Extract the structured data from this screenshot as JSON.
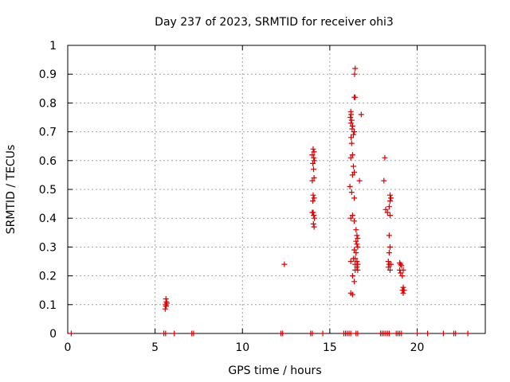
{
  "chart_data": {
    "type": "scatter",
    "title": "Day 237 of 2023, SRMTID for receiver ohi3",
    "xlabel": "GPS time / hours",
    "ylabel": "SRMTID / TECUs",
    "xlim": [
      0,
      23.9
    ],
    "ylim": [
      0,
      1
    ],
    "grid": true,
    "marker": "+",
    "marker_color": "#dd0000",
    "xticks": [
      0,
      5,
      10,
      15,
      20
    ],
    "yticks": [
      0,
      0.1,
      0.2,
      0.3,
      0.4,
      0.5,
      0.6,
      0.7,
      0.8,
      0.9,
      1
    ],
    "ytick_labels": [
      "0",
      "0.1",
      "0.2",
      "0.3",
      "0.4",
      "0.5",
      "0.6",
      "0.7",
      "0.8",
      "0.9",
      "1"
    ],
    "series": [
      {
        "name": "SRMTID",
        "points": [
          [
            0.2,
            0.0
          ],
          [
            5.5,
            0.0
          ],
          [
            5.6,
            0.0
          ],
          [
            6.1,
            0.0
          ],
          [
            7.1,
            0.0
          ],
          [
            7.2,
            0.0
          ],
          [
            12.2,
            0.0
          ],
          [
            12.3,
            0.0
          ],
          [
            13.9,
            0.0
          ],
          [
            14.0,
            0.0
          ],
          [
            14.6,
            0.0
          ],
          [
            15.8,
            0.0
          ],
          [
            15.9,
            0.0
          ],
          [
            16.0,
            0.0
          ],
          [
            16.1,
            0.0
          ],
          [
            16.2,
            0.0
          ],
          [
            16.5,
            0.0
          ],
          [
            16.6,
            0.0
          ],
          [
            17.9,
            0.0
          ],
          [
            18.0,
            0.0
          ],
          [
            18.1,
            0.0
          ],
          [
            18.2,
            0.0
          ],
          [
            18.3,
            0.0
          ],
          [
            18.4,
            0.0
          ],
          [
            18.8,
            0.0
          ],
          [
            18.9,
            0.0
          ],
          [
            19.0,
            0.0
          ],
          [
            19.1,
            0.0
          ],
          [
            20.0,
            0.0
          ],
          [
            20.6,
            0.0
          ],
          [
            21.5,
            0.0
          ],
          [
            22.1,
            0.0
          ],
          [
            22.2,
            0.0
          ],
          [
            22.9,
            0.0
          ],
          [
            5.62,
            0.12
          ],
          [
            5.65,
            0.11
          ],
          [
            5.6,
            0.1
          ],
          [
            5.63,
            0.095
          ],
          [
            5.58,
            0.085
          ],
          [
            5.68,
            0.105
          ],
          [
            12.4,
            0.24
          ],
          [
            14.05,
            0.64
          ],
          [
            14.1,
            0.63
          ],
          [
            14.0,
            0.62
          ],
          [
            14.08,
            0.61
          ],
          [
            14.12,
            0.6
          ],
          [
            14.03,
            0.59
          ],
          [
            14.07,
            0.57
          ],
          [
            14.0,
            0.53
          ],
          [
            14.1,
            0.54
          ],
          [
            14.05,
            0.48
          ],
          [
            14.1,
            0.47
          ],
          [
            14.03,
            0.46
          ],
          [
            14.0,
            0.42
          ],
          [
            14.08,
            0.41
          ],
          [
            14.05,
            0.42
          ],
          [
            14.12,
            0.4
          ],
          [
            14.06,
            0.38
          ],
          [
            14.1,
            0.37
          ],
          [
            16.2,
            0.77
          ],
          [
            16.22,
            0.76
          ],
          [
            16.18,
            0.75
          ],
          [
            16.25,
            0.74
          ],
          [
            16.2,
            0.73
          ],
          [
            16.3,
            0.72
          ],
          [
            16.28,
            0.71
          ],
          [
            16.4,
            0.7
          ],
          [
            16.35,
            0.69
          ],
          [
            16.22,
            0.68
          ],
          [
            16.25,
            0.66
          ],
          [
            16.3,
            0.62
          ],
          [
            16.2,
            0.61
          ],
          [
            16.35,
            0.58
          ],
          [
            16.3,
            0.55
          ],
          [
            16.4,
            0.56
          ],
          [
            16.15,
            0.51
          ],
          [
            16.25,
            0.49
          ],
          [
            16.4,
            0.47
          ],
          [
            16.3,
            0.41
          ],
          [
            16.2,
            0.4
          ],
          [
            16.4,
            0.39
          ],
          [
            16.45,
            0.92
          ],
          [
            16.42,
            0.9
          ],
          [
            16.45,
            0.82
          ],
          [
            16.4,
            0.82
          ],
          [
            16.8,
            0.76
          ],
          [
            16.7,
            0.53
          ],
          [
            16.5,
            0.36
          ],
          [
            16.55,
            0.34
          ],
          [
            16.6,
            0.33
          ],
          [
            16.5,
            0.32
          ],
          [
            16.55,
            0.31
          ],
          [
            16.4,
            0.29
          ],
          [
            16.6,
            0.3
          ],
          [
            16.5,
            0.28
          ],
          [
            16.45,
            0.26
          ],
          [
            16.35,
            0.26
          ],
          [
            16.55,
            0.25
          ],
          [
            16.6,
            0.24
          ],
          [
            16.45,
            0.24
          ],
          [
            16.55,
            0.23
          ],
          [
            16.6,
            0.22
          ],
          [
            16.45,
            0.22
          ],
          [
            16.2,
            0.25
          ],
          [
            16.3,
            0.2
          ],
          [
            16.4,
            0.18
          ],
          [
            16.2,
            0.14
          ],
          [
            16.3,
            0.135
          ],
          [
            18.15,
            0.61
          ],
          [
            18.1,
            0.53
          ],
          [
            18.45,
            0.48
          ],
          [
            18.5,
            0.47
          ],
          [
            18.45,
            0.46
          ],
          [
            18.4,
            0.44
          ],
          [
            18.2,
            0.43
          ],
          [
            18.3,
            0.42
          ],
          [
            18.45,
            0.41
          ],
          [
            18.4,
            0.34
          ],
          [
            18.45,
            0.3
          ],
          [
            18.4,
            0.28
          ],
          [
            18.35,
            0.25
          ],
          [
            18.4,
            0.24
          ],
          [
            18.5,
            0.24
          ],
          [
            18.35,
            0.23
          ],
          [
            18.45,
            0.22
          ],
          [
            19.0,
            0.245
          ],
          [
            19.05,
            0.24
          ],
          [
            19.1,
            0.235
          ],
          [
            19.0,
            0.22
          ],
          [
            19.2,
            0.22
          ],
          [
            19.05,
            0.21
          ],
          [
            19.15,
            0.2
          ],
          [
            19.2,
            0.16
          ],
          [
            19.25,
            0.15
          ],
          [
            19.15,
            0.15
          ],
          [
            19.2,
            0.14
          ]
        ]
      }
    ]
  }
}
